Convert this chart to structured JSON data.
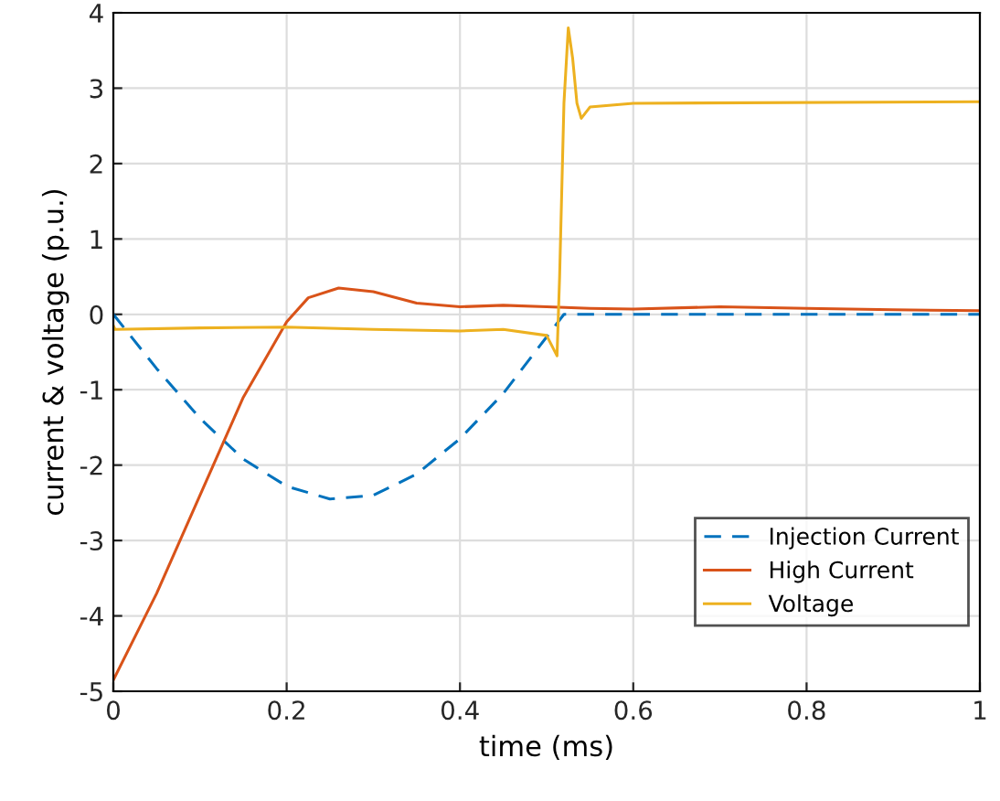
{
  "chart_data": {
    "type": "line",
    "xlabel": "time (ms)",
    "ylabel": "current & voltage (p.u.)",
    "xlim": [
      0,
      1
    ],
    "ylim": [
      -5,
      4
    ],
    "xticks": [
      0,
      0.2,
      0.4,
      0.6,
      0.8,
      1
    ],
    "yticks": [
      -5,
      -4,
      -3,
      -2,
      -1,
      0,
      1,
      2,
      3,
      4
    ],
    "grid": true,
    "legend": "bottom right",
    "series": [
      {
        "name": "Injection Current",
        "color": "#0072bd",
        "line_style": "dashed",
        "x": [
          0,
          0.05,
          0.1,
          0.15,
          0.2,
          0.25,
          0.3,
          0.35,
          0.4,
          0.45,
          0.5,
          0.52,
          0.6,
          1.0
        ],
        "values": [
          0,
          -0.72,
          -1.38,
          -1.92,
          -2.28,
          -2.45,
          -2.4,
          -2.12,
          -1.65,
          -1.05,
          -0.3,
          0,
          0,
          0
        ]
      },
      {
        "name": "High Current",
        "color": "#d95319",
        "line_style": "solid",
        "x": [
          0,
          0.05,
          0.1,
          0.15,
          0.2,
          0.225,
          0.26,
          0.3,
          0.35,
          0.4,
          0.45,
          0.5,
          0.55,
          0.6,
          0.7,
          0.8,
          0.9,
          1.0
        ],
        "values": [
          -4.85,
          -3.7,
          -2.4,
          -1.1,
          -0.1,
          0.22,
          0.35,
          0.3,
          0.15,
          0.1,
          0.12,
          0.1,
          0.08,
          0.07,
          0.1,
          0.08,
          0.06,
          0.05
        ]
      },
      {
        "name": "Voltage",
        "color": "#edb120",
        "line_style": "solid",
        "x": [
          0,
          0.002,
          0.1,
          0.2,
          0.3,
          0.4,
          0.45,
          0.5,
          0.512,
          0.515,
          0.52,
          0.525,
          0.53,
          0.535,
          0.54,
          0.55,
          0.6,
          1.0
        ],
        "values": [
          -0.15,
          -0.2,
          -0.18,
          -0.17,
          -0.2,
          -0.22,
          -0.2,
          -0.28,
          -0.55,
          0.5,
          2.8,
          3.8,
          3.4,
          2.8,
          2.6,
          2.75,
          2.8,
          2.82
        ]
      }
    ]
  }
}
